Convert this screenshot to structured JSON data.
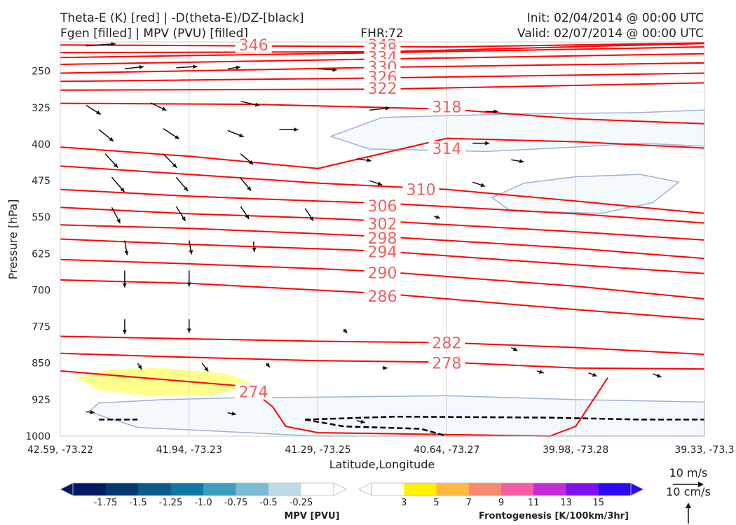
{
  "titles": {
    "left_line1": "Theta-E (K) [red] | -D(theta-E)/DZ-[black]",
    "left_line2": "Fgen [filled] | MPV (PVU) [filled]",
    "center": "FHR:72",
    "right_line1": "Init: 02/04/2014 @ 00:00 UTC",
    "right_line2": "Valid: 02/07/2014 @ 00:00 UTC"
  },
  "chart_data": {
    "type": "cross-section",
    "xlabel": "Latitude,Longitude",
    "ylabel": "Pressure [hPa]",
    "x_ticks": [
      "42.59, -73.22",
      "41.94, -73.23",
      "41.29, -73.25",
      "40.64, -73.27",
      "39.98, -73.28",
      "39.33, -73.3"
    ],
    "y_ticks": [
      250,
      325,
      400,
      475,
      550,
      625,
      700,
      775,
      850,
      925,
      1000
    ],
    "ylim": [
      1000,
      190
    ],
    "x_range": [
      0,
      5
    ],
    "theta_e_color": "#ff0000",
    "theta_e_contours": [
      {
        "label": "346",
        "points": [
          [
            0,
            196
          ],
          [
            1.5,
            198
          ],
          [
            3,
            200
          ],
          [
            5,
            192
          ]
        ],
        "label_at": [
          1.5,
          196
        ]
      },
      {
        "label": "342",
        "points": [
          [
            0,
            212
          ],
          [
            2.5,
            210
          ],
          [
            5,
            193
          ]
        ],
        "label_at": [
          2.5,
          196
        ]
      },
      {
        "label": "338",
        "points": [
          [
            0,
            222
          ],
          [
            2.5,
            212
          ],
          [
            5,
            200
          ]
        ],
        "label_at": [
          2.5,
          204
        ]
      },
      {
        "label": "334",
        "points": [
          [
            0,
            236
          ],
          [
            2.5,
            225
          ],
          [
            5,
            214
          ]
        ],
        "label_at": [
          2.5,
          221
        ]
      },
      {
        "label": "330",
        "points": [
          [
            0,
            254
          ],
          [
            1.5,
            247
          ],
          [
            2.5,
            242
          ],
          [
            5,
            233
          ]
        ],
        "label_at": [
          2.5,
          241
        ]
      },
      {
        "label": "326",
        "points": [
          [
            0,
            271
          ],
          [
            2.5,
            264
          ],
          [
            5,
            254
          ]
        ],
        "label_at": [
          2.5,
          262
        ]
      },
      {
        "label": "322",
        "points": [
          [
            0,
            289
          ],
          [
            2.5,
            287
          ],
          [
            5,
            274
          ]
        ],
        "label_at": [
          2.5,
          285
        ]
      },
      {
        "label": "318",
        "points": [
          [
            0,
            316
          ],
          [
            1.5,
            318
          ],
          [
            3,
            328
          ],
          [
            4,
            348
          ],
          [
            5,
            358
          ]
        ],
        "label_at": [
          3,
          323
        ]
      },
      {
        "label": "314",
        "points": [
          [
            0,
            406
          ],
          [
            1,
            425
          ],
          [
            2,
            450
          ],
          [
            3,
            388
          ],
          [
            4,
            395
          ],
          [
            5,
            408
          ]
        ],
        "label_at": [
          3,
          409
        ]
      },
      {
        "label": "310",
        "points": [
          [
            0,
            445
          ],
          [
            1,
            462
          ],
          [
            2,
            480
          ],
          [
            3,
            493
          ],
          [
            4,
            517
          ],
          [
            5,
            542
          ]
        ],
        "label_at": [
          2.8,
          493
        ]
      },
      {
        "label": "306",
        "points": [
          [
            0,
            493
          ],
          [
            1,
            507
          ],
          [
            2,
            517
          ],
          [
            2.5,
            521
          ],
          [
            4,
            543
          ],
          [
            5,
            562
          ]
        ],
        "label_at": [
          2.5,
          527
        ]
      },
      {
        "label": "302",
        "points": [
          [
            0,
            530
          ],
          [
            1,
            543
          ],
          [
            2,
            552
          ],
          [
            2.5,
            558
          ],
          [
            4,
            580
          ],
          [
            5,
            597
          ]
        ],
        "label_at": [
          2.5,
          563
        ]
      },
      {
        "label": "298",
        "points": [
          [
            0,
            566
          ],
          [
            1,
            573
          ],
          [
            2,
            584
          ],
          [
            2.5,
            590
          ],
          [
            4,
            614
          ],
          [
            5,
            635
          ]
        ],
        "label_at": [
          2.5,
          593
        ]
      },
      {
        "label": "294",
        "points": [
          [
            0,
            595
          ],
          [
            1,
            606
          ],
          [
            2,
            615
          ],
          [
            2.5,
            620
          ],
          [
            4,
            648
          ],
          [
            5,
            666
          ]
        ],
        "label_at": [
          2.5,
          621
        ]
      },
      {
        "label": "290",
        "points": [
          [
            0,
            637
          ],
          [
            1,
            646
          ],
          [
            2,
            656
          ],
          [
            2.5,
            662
          ],
          [
            4,
            692
          ],
          [
            5,
            718
          ]
        ],
        "label_at": [
          2.5,
          664
        ]
      },
      {
        "label": "286",
        "points": [
          [
            0,
            679
          ],
          [
            1,
            686
          ],
          [
            2,
            700
          ],
          [
            2.5,
            707
          ],
          [
            4,
            740
          ],
          [
            5,
            760
          ]
        ],
        "label_at": [
          2.5,
          712
        ]
      },
      {
        "label": "282",
        "points": [
          [
            0,
            795
          ],
          [
            1,
            800
          ],
          [
            2,
            805
          ],
          [
            3,
            808
          ],
          [
            4,
            818
          ],
          [
            5,
            832
          ]
        ],
        "label_at": [
          3,
          808
        ]
      },
      {
        "label": "278",
        "points": [
          [
            0,
            830
          ],
          [
            1,
            838
          ],
          [
            2,
            845
          ],
          [
            3,
            848
          ],
          [
            4,
            860
          ],
          [
            5,
            862
          ]
        ],
        "label_at": [
          3,
          850
        ]
      },
      {
        "label": "274",
        "points": [
          [
            0,
            866
          ],
          [
            1,
            888
          ],
          [
            1.45,
            898
          ],
          [
            1.65,
            940
          ],
          [
            1.75,
            980
          ],
          [
            2,
            993
          ],
          [
            3.8,
            1000
          ],
          [
            4,
            980
          ],
          [
            4.2,
            900
          ],
          [
            4.25,
            880
          ]
        ],
        "label_at": [
          1.5,
          909
        ]
      }
    ],
    "fgen_fill": {
      "level": 3,
      "color": "#ffff8c",
      "points": [
        [
          0.12,
          880
        ],
        [
          0.4,
          862
        ],
        [
          0.8,
          860
        ],
        [
          1.3,
          872
        ],
        [
          1.5,
          894
        ],
        [
          1.2,
          915
        ],
        [
          0.7,
          918
        ],
        [
          0.3,
          905
        ]
      ]
    },
    "mpv_fill": [
      {
        "level": -0.25,
        "color": "#f4fafb",
        "outline": "#9fb0d8",
        "points": [
          [
            2.1,
            384
          ],
          [
            2.5,
            345
          ],
          [
            3.5,
            338
          ],
          [
            4.5,
            335
          ],
          [
            5,
            330
          ],
          [
            5,
            404
          ],
          [
            4.5,
            398
          ],
          [
            4,
            406
          ],
          [
            3.3,
            415
          ],
          [
            2.8,
            412
          ],
          [
            2.4,
            410
          ]
        ]
      },
      {
        "level": -0.25,
        "color": "#f4fafb",
        "outline": "#9fb0d8",
        "points": [
          [
            3.35,
            510
          ],
          [
            3.6,
            480
          ],
          [
            4,
            467
          ],
          [
            4.5,
            462
          ],
          [
            4.8,
            478
          ],
          [
            4.6,
            520
          ],
          [
            4.2,
            542
          ],
          [
            3.9,
            540
          ],
          [
            3.5,
            538
          ]
        ]
      },
      {
        "level": -0.25,
        "color": "#f4fafb",
        "outline": "#9fb0d8",
        "points": [
          [
            0.22,
            950
          ],
          [
            0.3,
            932
          ],
          [
            0.8,
            925
          ],
          [
            1.4,
            921
          ],
          [
            2,
            920
          ],
          [
            3,
            917
          ],
          [
            4,
            925
          ],
          [
            5,
            930
          ],
          [
            5,
            1000
          ],
          [
            2,
            1000
          ],
          [
            0.6,
            982
          ]
        ]
      }
    ],
    "dthetae_dz_color": "#000000",
    "dthetae_dz_contours": [
      {
        "points": [
          [
            0.3,
            966
          ],
          [
            0.6,
            966
          ]
        ]
      },
      {
        "points": [
          [
            1.9,
            966
          ],
          [
            2.6,
            960
          ],
          [
            3.8,
            962
          ],
          [
            4.5,
            966
          ],
          [
            5,
            966
          ]
        ]
      },
      {
        "points": [
          [
            1.9,
            966
          ],
          [
            2.2,
            980
          ],
          [
            2.8,
            985
          ],
          [
            3,
            1000
          ]
        ]
      }
    ],
    "wind_vectors": {
      "note": "direction glyphs only",
      "samples": [
        [
          0.2,
          198,
          0.7,
          0.05
        ],
        [
          0.5,
          245,
          0.45,
          0.05
        ],
        [
          0.9,
          243,
          0.5,
          0.03
        ],
        [
          1.3,
          245,
          0.3,
          0.04
        ],
        [
          2,
          245,
          0.45,
          -0.03
        ],
        [
          0.2,
          320,
          0.35,
          -0.22
        ],
        [
          0.7,
          315,
          0.38,
          -0.18
        ],
        [
          1.4,
          312,
          0.45,
          -0.1
        ],
        [
          2.4,
          330,
          0.48,
          0.05
        ],
        [
          3.3,
          333,
          0.3,
          0
        ],
        [
          0.3,
          370,
          0.35,
          -0.28
        ],
        [
          0.8,
          368,
          0.38,
          -0.25
        ],
        [
          1.3,
          372,
          0.38,
          -0.15
        ],
        [
          1.7,
          370,
          0.45,
          0
        ],
        [
          3.2,
          398,
          0.4,
          0
        ],
        [
          0.35,
          420,
          0.3,
          -0.33
        ],
        [
          0.8,
          420,
          0.32,
          -0.33
        ],
        [
          1.4,
          420,
          0.3,
          -0.25
        ],
        [
          2.3,
          430,
          0.35,
          -0.05
        ],
        [
          3.5,
          432,
          0.3,
          -0.05
        ],
        [
          0.4,
          468,
          0.3,
          -0.35
        ],
        [
          0.9,
          468,
          0.28,
          -0.33
        ],
        [
          1.4,
          470,
          0.25,
          -0.3
        ],
        [
          2.4,
          475,
          0.3,
          -0.1
        ],
        [
          3.2,
          478,
          0.3,
          -0.1
        ],
        [
          0.4,
          530,
          0.2,
          -0.38
        ],
        [
          0.9,
          528,
          0.22,
          -0.35
        ],
        [
          1.4,
          528,
          0.2,
          -0.3
        ],
        [
          1.9,
          532,
          0.2,
          -0.3
        ],
        [
          2.9,
          548,
          0.15,
          -0.05
        ],
        [
          0.5,
          598,
          0.06,
          -0.35
        ],
        [
          1,
          598,
          0.06,
          -0.33
        ],
        [
          1.5,
          600,
          0.02,
          -0.25
        ],
        [
          0.5,
          660,
          0,
          -0.4
        ],
        [
          1,
          660,
          0,
          -0.38
        ],
        [
          0.5,
          760,
          0,
          -0.35
        ],
        [
          1,
          760,
          0,
          -0.32
        ],
        [
          2.2,
          780,
          0.08,
          -0.1
        ],
        [
          3,
          800,
          0.1,
          -0.08
        ],
        [
          3.5,
          818,
          0.15,
          -0.08
        ],
        [
          0.6,
          850,
          0.1,
          -0.15
        ],
        [
          1.1,
          850,
          0.15,
          -0.2
        ],
        [
          1.6,
          850,
          0.08,
          -0.1
        ],
        [
          2.5,
          860,
          0.12,
          0
        ],
        [
          3.7,
          866,
          0.16,
          -0.05
        ],
        [
          4.1,
          870,
          0.2,
          -0.08
        ],
        [
          4.6,
          872,
          0.2,
          -0.08
        ],
        [
          0.2,
          950,
          0.2,
          -0.02
        ],
        [
          1.3,
          952,
          0.2,
          -0.04
        ],
        [
          2.3,
          968,
          0.2,
          -0.05
        ]
      ]
    },
    "mpv_colorbar": {
      "title": "MPV [PVU]",
      "colors": [
        "#011960",
        "#04376e",
        "#0a5a8a",
        "#0e77a3",
        "#3a9cbe",
        "#79bcd4",
        "#bcdde8",
        "#ffffff"
      ],
      "tick_labels": [
        "-1.75",
        "-1.5",
        "-1.25",
        "-1.0",
        "-0.75",
        "-0.5",
        "-0.25"
      ]
    },
    "fgen_colorbar": {
      "title": "Frontogenesis [K/100km/3hr]",
      "colors": [
        "#ffffff",
        "#fff200",
        "#fdb940",
        "#fa8a6e",
        "#f85aa5",
        "#c52bd9",
        "#7d12f0",
        "#2a0af5"
      ],
      "tick_labels": [
        "3",
        "5",
        "7",
        "9",
        "11",
        "13",
        "15"
      ]
    },
    "vector_keys": [
      "10 m/s",
      "10 cm/s"
    ]
  }
}
